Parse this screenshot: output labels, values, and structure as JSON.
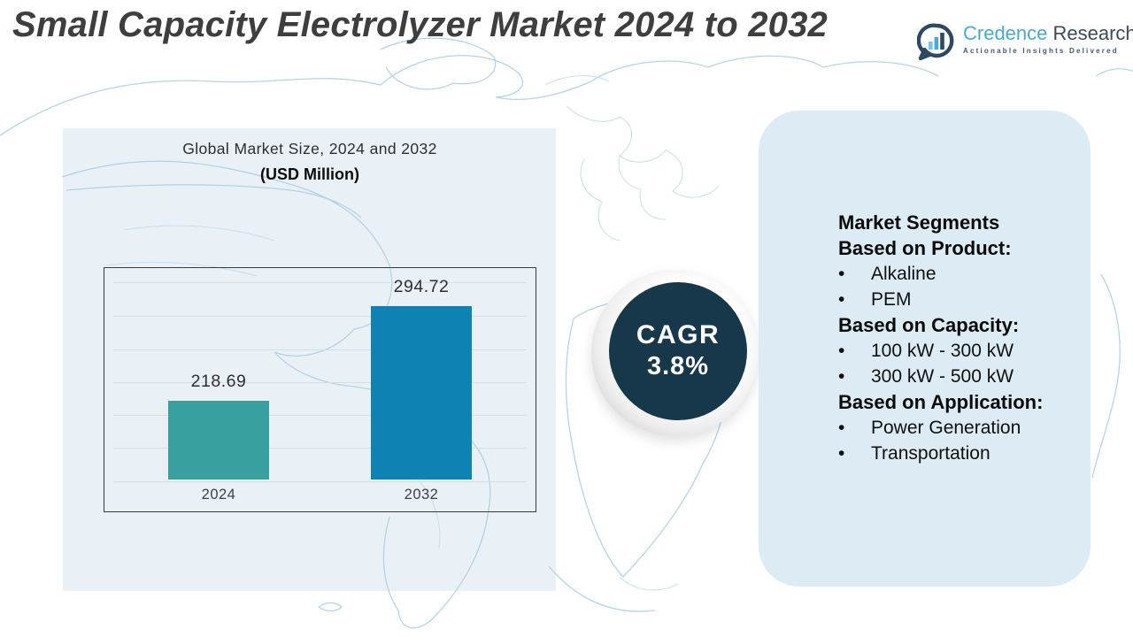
{
  "title": "Small Capacity Electrolyzer Market 2024 to 2032",
  "logo": {
    "name_primary": "Credence",
    "name_secondary": "Research",
    "tagline": "Actionable Insights Delivered",
    "colors": {
      "primary_blue": "#4BA9C9",
      "dark_slate": "#3D4A59",
      "light_bar": "#6FC7E3"
    }
  },
  "chart_header": {
    "line1": "Global Market Size, 2024 and 2032",
    "line2": "(USD Million)"
  },
  "chart_data": {
    "type": "bar",
    "title": "Global Market Size, 2024 and 2032 (USD Million)",
    "categories": [
      "2024",
      "2032"
    ],
    "values": [
      218.69,
      294.72
    ],
    "value_labels": [
      "218.69",
      "294.72"
    ],
    "series": [
      {
        "name": "Global Market Size (USD Million)",
        "values": [
          218.69,
          294.72
        ]
      }
    ],
    "bar_colors": [
      "#39A0A0",
      "#0E82B2"
    ],
    "xlabel": "",
    "ylabel": "",
    "grid": true,
    "gridline_count": 7,
    "legend": false,
    "axis_baseline_not_zero": true
  },
  "cagr": {
    "label": "CAGR",
    "value": "3.8%",
    "circle_color": "#17384A",
    "text_color": "#FFFFFF"
  },
  "segments_panel": {
    "background": "#DCEBF4",
    "heading": "Market Segments",
    "bullet": "•",
    "groups": [
      {
        "label": "Based on Product:",
        "items": [
          "Alkaline",
          "PEM"
        ]
      },
      {
        "label": "Based on Capacity:",
        "items": [
          "100 kW - 300 kW",
          "300 kW - 500 kW"
        ]
      },
      {
        "label": "Based on Application:",
        "items": [
          "Power Generation",
          "Transportation"
        ]
      }
    ]
  },
  "colors": {
    "left_panel_bg": "#E9F1F7",
    "map_stroke": "#AECFE2",
    "page_bg": "#FFFFFF",
    "title_color": "#3E3E3E"
  }
}
